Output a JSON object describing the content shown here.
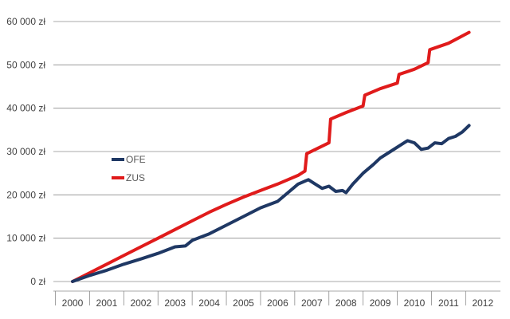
{
  "chart_data": {
    "type": "line",
    "title": "",
    "xlabel": "",
    "ylabel": "",
    "x_range": [
      2000.0,
      2012.6
    ],
    "ylim": [
      0,
      60000
    ],
    "y_ticks": [
      0,
      10000,
      20000,
      30000,
      40000,
      50000,
      60000
    ],
    "y_tick_labels": [
      "0 zł",
      "10 000 zł",
      "20 000 zł",
      "30 000 zł",
      "40 000 zł",
      "50 000 zł",
      "60 000 zł"
    ],
    "x_tick_labels": [
      "2000",
      "2001",
      "2002",
      "2003",
      "2004",
      "2005",
      "2006",
      "2007",
      "2008",
      "2009",
      "2010",
      "2011",
      "2012"
    ],
    "grid": "horizontal",
    "legend_position": "center-left",
    "series": [
      {
        "name": "OFE",
        "color": "#1f3864",
        "points": [
          [
            2000.0,
            0
          ],
          [
            2000.5,
            1400
          ],
          [
            2001.0,
            2600
          ],
          [
            2001.5,
            4000
          ],
          [
            2002.0,
            5200
          ],
          [
            2002.5,
            6500
          ],
          [
            2003.0,
            8000
          ],
          [
            2003.3,
            8200
          ],
          [
            2003.5,
            9500
          ],
          [
            2004.0,
            11000
          ],
          [
            2004.5,
            13000
          ],
          [
            2005.0,
            15000
          ],
          [
            2005.5,
            17000
          ],
          [
            2006.0,
            18500
          ],
          [
            2006.3,
            20500
          ],
          [
            2006.6,
            22500
          ],
          [
            2006.9,
            23500
          ],
          [
            2007.1,
            22500
          ],
          [
            2007.3,
            21500
          ],
          [
            2007.5,
            22000
          ],
          [
            2007.7,
            20800
          ],
          [
            2007.9,
            21000
          ],
          [
            2008.0,
            20500
          ],
          [
            2008.2,
            22500
          ],
          [
            2008.5,
            25000
          ],
          [
            2008.8,
            27000
          ],
          [
            2009.0,
            28500
          ],
          [
            2009.3,
            30000
          ],
          [
            2009.6,
            31500
          ],
          [
            2009.8,
            32500
          ],
          [
            2010.0,
            32000
          ],
          [
            2010.2,
            30500
          ],
          [
            2010.4,
            30800
          ],
          [
            2010.6,
            32000
          ],
          [
            2010.8,
            31800
          ],
          [
            2011.0,
            33000
          ],
          [
            2011.2,
            33500
          ],
          [
            2011.4,
            34500
          ],
          [
            2011.6,
            36000
          ]
        ]
      },
      {
        "name": "ZUS",
        "color": "#e01b1b",
        "points": [
          [
            2000.0,
            0
          ],
          [
            2000.5,
            2000
          ],
          [
            2001.0,
            4000
          ],
          [
            2001.5,
            6000
          ],
          [
            2002.0,
            8000
          ],
          [
            2002.5,
            10000
          ],
          [
            2003.0,
            12000
          ],
          [
            2003.5,
            14000
          ],
          [
            2004.0,
            16000
          ],
          [
            2004.5,
            17800
          ],
          [
            2005.0,
            19500
          ],
          [
            2005.5,
            21000
          ],
          [
            2006.0,
            22500
          ],
          [
            2006.3,
            23500
          ],
          [
            2006.6,
            24500
          ],
          [
            2006.8,
            25500
          ],
          [
            2006.85,
            29500
          ],
          [
            2007.5,
            32000
          ],
          [
            2007.55,
            37500
          ],
          [
            2008.0,
            39000
          ],
          [
            2008.5,
            40500
          ],
          [
            2008.55,
            43000
          ],
          [
            2009.0,
            44500
          ],
          [
            2009.5,
            45800
          ],
          [
            2009.55,
            47800
          ],
          [
            2010.0,
            49000
          ],
          [
            2010.4,
            50500
          ],
          [
            2010.45,
            53500
          ],
          [
            2011.0,
            55000
          ],
          [
            2011.6,
            57500
          ]
        ]
      }
    ]
  }
}
